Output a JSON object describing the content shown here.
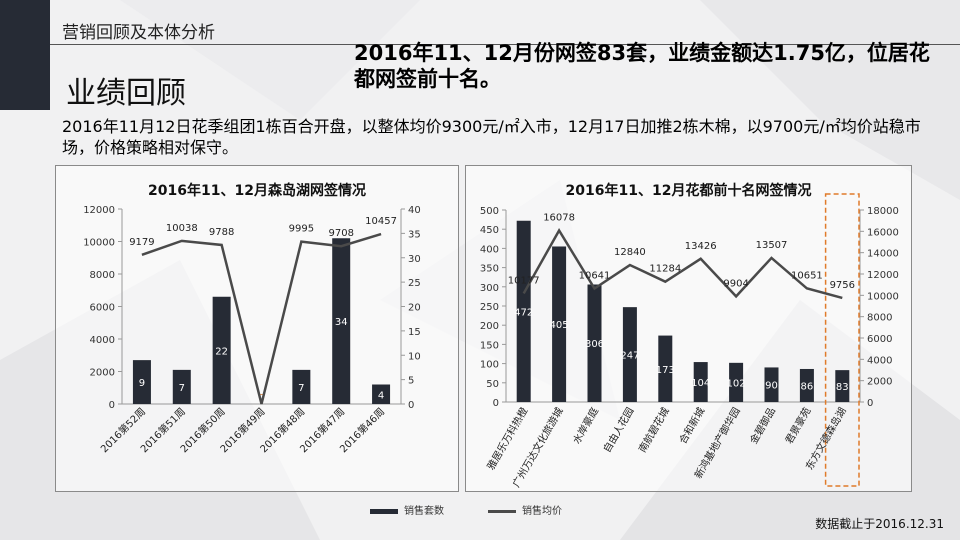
{
  "header": {
    "section_label": "营销回顾及本体分析",
    "page_title": "业绩回顾"
  },
  "headline": "2016年11、12月份网签83套，业绩金额达1.75亿，位居花都网签前十名。",
  "body_text": "2016年11月12日花季组团1栋百合开盘，以整体均价9300元/㎡入市，12月17日加推2栋木棉，以9700元/㎡均价站稳市场，价格策略相对保守。",
  "legend": {
    "bar_label": "销售套数",
    "line_label": "销售均价"
  },
  "footnote": "数据截止于2016.12.31",
  "colors": {
    "bar": "#262b35",
    "line": "#4a4a4a",
    "highlight_box": "#e07b2a"
  },
  "chart_data": [
    {
      "type": "bar+line",
      "title": "2016年11、12月森岛湖网签情况",
      "categories": [
        "2016第52周",
        "2016第51周",
        "2016第50周",
        "2016第49周",
        "2016第48周",
        "2016第47周",
        "2016第46周"
      ],
      "series": [
        {
          "name": "销售套数",
          "type": "bar",
          "axis": "right",
          "values": [
            9,
            7,
            22,
            0,
            7,
            34,
            4
          ]
        },
        {
          "name": "销售均价",
          "type": "line",
          "axis": "left",
          "values": [
            9179,
            10038,
            9788,
            0,
            9995,
            9708,
            10457
          ]
        }
      ],
      "ylim_left": [
        0,
        12000
      ],
      "yticks_left": [
        0,
        2000,
        4000,
        6000,
        8000,
        10000,
        12000
      ],
      "ylim_right": [
        0,
        40
      ],
      "yticks_right": [
        0,
        5,
        10,
        15,
        20,
        25,
        30,
        35,
        40
      ],
      "grid": false
    },
    {
      "type": "bar+line",
      "title": "2016年11、12月花都前十名网签情况",
      "categories": [
        "雅居乐万科热橙",
        "广州万达文化旅游城",
        "水岸豪庭",
        "自由人花园",
        "南航碧花城",
        "合和新城",
        "新鸿基地产御华园",
        "金碧御品",
        "君景豪苑",
        "东方文德森岛湖"
      ],
      "series": [
        {
          "name": "销售套数",
          "type": "bar",
          "axis": "left",
          "values": [
            472,
            405,
            306,
            247,
            173,
            104,
            102,
            90,
            86,
            83
          ]
        },
        {
          "name": "销售均价",
          "type": "line",
          "axis": "right",
          "values": [
            10177,
            16078,
            10641,
            12840,
            11284,
            13426,
            9904,
            13507,
            10651,
            9756
          ]
        }
      ],
      "ylim_left": [
        0,
        500
      ],
      "yticks_left": [
        0,
        50,
        100,
        150,
        200,
        250,
        300,
        350,
        400,
        450,
        500
      ],
      "ylim_right": [
        0,
        18000
      ],
      "yticks_right": [
        0,
        2000,
        4000,
        6000,
        8000,
        10000,
        12000,
        14000,
        16000,
        18000
      ],
      "grid": false,
      "highlight_category": "东方文德森岛湖"
    }
  ]
}
